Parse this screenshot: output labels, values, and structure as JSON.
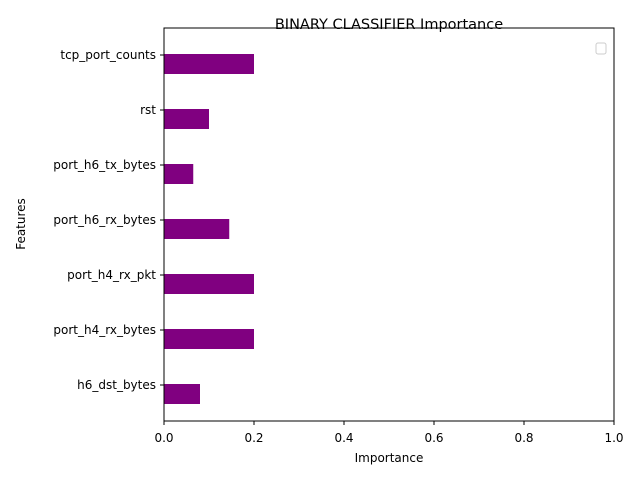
{
  "chart_data": {
    "type": "bar",
    "orientation": "horizontal",
    "title": "BINARY CLASSIFIER Importance",
    "xlabel": "Importance",
    "ylabel": "Features",
    "categories": [
      "h6_dst_bytes",
      "port_h4_rx_bytes",
      "port_h4_rx_pkt",
      "port_h6_rx_bytes",
      "port_h6_tx_bytes",
      "rst",
      "tcp_port_counts"
    ],
    "values": [
      0.08,
      0.2,
      0.2,
      0.145,
      0.065,
      0.1,
      0.2
    ],
    "xlim": [
      0,
      1.0
    ],
    "xticks": [
      "0.0",
      "0.2",
      "0.4",
      "0.6",
      "0.8",
      "1.0"
    ],
    "bar_color": "#800080",
    "grid": false,
    "legend": {
      "placement": "top-right",
      "entries": []
    }
  }
}
